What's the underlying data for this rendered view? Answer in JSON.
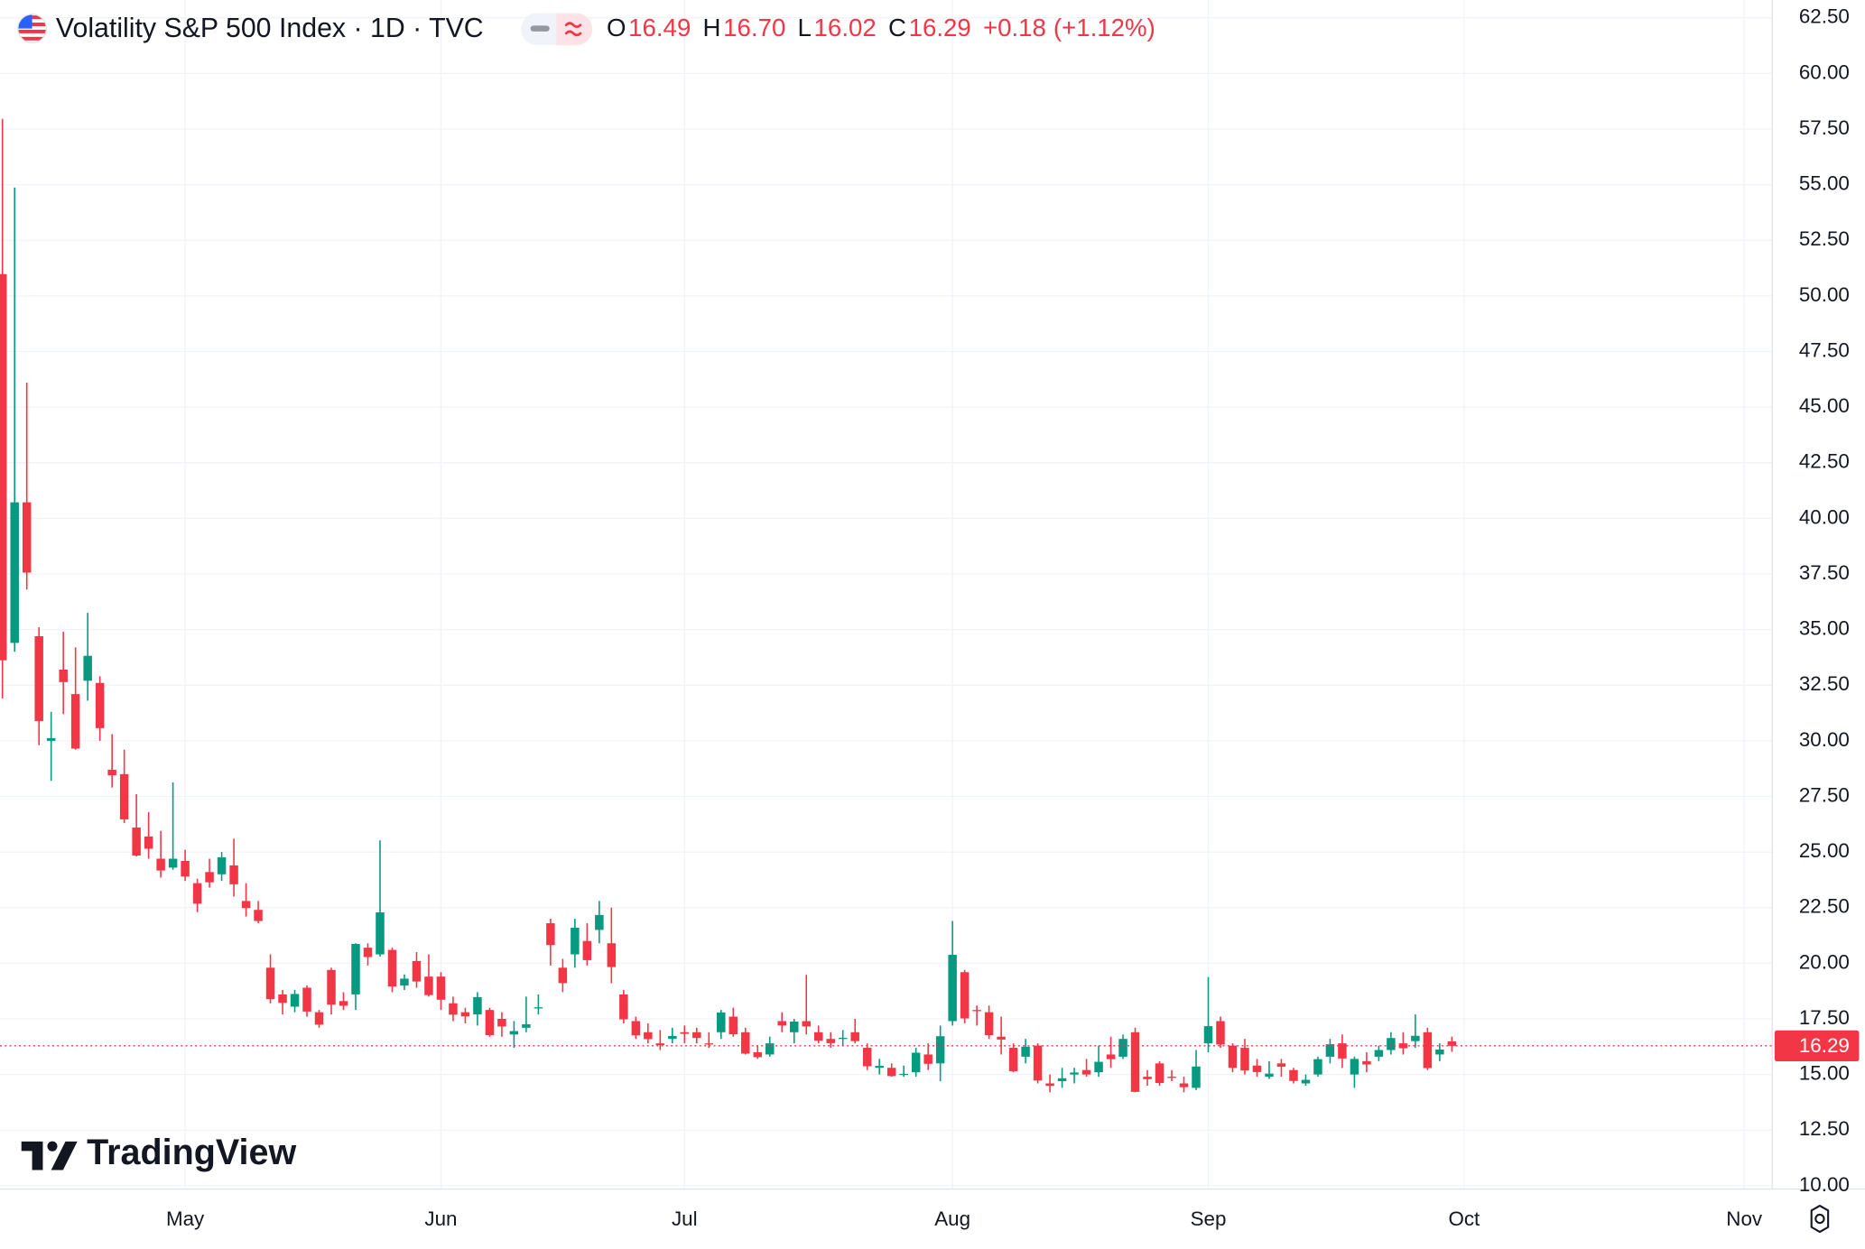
{
  "chart_data": {
    "type": "candlestick",
    "title": "Volatility S&P 500 Index · 1D · TVC",
    "legend": [
      {
        "label": "O",
        "value": "16.49"
      },
      {
        "label": "H",
        "value": "16.70"
      },
      {
        "label": "L",
        "value": "16.02"
      },
      {
        "label": "C",
        "value": "16.29"
      }
    ],
    "change": "+0.18",
    "change_percent": "(+1.12%)",
    "watermark": "TradingView",
    "up_color": "#089981",
    "down_color": "#f23645",
    "grid": true,
    "last_price": 16.29,
    "ylim": [
      9.85,
      63.3
    ],
    "yticks": [
      {
        "value": 10,
        "label": "10.00"
      },
      {
        "value": 12.5,
        "label": "12.50"
      },
      {
        "value": 15,
        "label": "15.00"
      },
      {
        "value": 17.5,
        "label": "17.50"
      },
      {
        "value": 20,
        "label": "20.00"
      },
      {
        "value": 22.5,
        "label": "22.50"
      },
      {
        "value": 25,
        "label": "25.00"
      },
      {
        "value": 27.5,
        "label": "27.50"
      },
      {
        "value": 30,
        "label": "30.00"
      },
      {
        "value": 32.5,
        "label": "32.50"
      },
      {
        "value": 35,
        "label": "35.00"
      },
      {
        "value": 37.5,
        "label": "37.50"
      },
      {
        "value": 40,
        "label": "40.00"
      },
      {
        "value": 42.5,
        "label": "42.50"
      },
      {
        "value": 45,
        "label": "45.00"
      },
      {
        "value": 47.5,
        "label": "47.50"
      },
      {
        "value": 50,
        "label": "50.00"
      },
      {
        "value": 52.5,
        "label": "52.50"
      },
      {
        "value": 55,
        "label": "55.00"
      },
      {
        "value": 57.5,
        "label": "57.50"
      },
      {
        "value": 60,
        "label": "60.00"
      },
      {
        "value": 62.5,
        "label": "62.50"
      }
    ],
    "xlim": [
      -0.2,
      145.3
    ],
    "xticks": [
      {
        "value": 15,
        "label": "May"
      },
      {
        "value": 36,
        "label": "Jun"
      },
      {
        "value": 56,
        "label": "Jul"
      },
      {
        "value": 78,
        "label": "Aug"
      },
      {
        "value": 99,
        "label": "Sep"
      },
      {
        "value": 120,
        "label": "Oct"
      },
      {
        "value": 143,
        "label": "Nov"
      }
    ],
    "open": [
      50.98,
      34.4,
      40.72,
      34.7,
      30.0,
      33.2,
      32.1,
      32.7,
      32.6,
      28.7,
      28.5,
      26.1,
      25.7,
      24.7,
      24.3,
      24.6,
      23.6,
      24.1,
      24.0,
      24.4,
      22.8,
      22.4,
      19.8,
      18.6,
      18.05,
      18.9,
      17.8,
      19.7,
      18.3,
      18.6,
      20.7,
      20.4,
      20.6,
      19.0,
      20.1,
      19.4,
      19.4,
      18.2,
      17.8,
      17.7,
      17.9,
      17.5,
      16.8,
      17.1,
      18.0,
      21.8,
      19.8,
      20.4,
      21.0,
      21.5,
      20.9,
      18.6,
      17.4,
      16.9,
      16.4,
      16.6,
      16.9,
      16.9,
      16.4,
      16.9,
      17.6,
      16.9,
      16.0,
      15.9,
      17.4,
      16.9,
      17.4,
      16.9,
      16.6,
      16.6,
      16.9,
      16.2,
      15.3,
      15.3,
      15.0,
      15.1,
      15.9,
      15.5,
      17.4,
      19.6,
      17.9,
      17.8,
      16.7,
      16.2,
      15.8,
      16.3,
      14.6,
      14.7,
      15.0,
      15.2,
      15.1,
      15.9,
      15.8,
      16.9,
      14.9,
      15.5,
      14.9,
      14.6,
      14.4,
      16.4,
      17.4,
      16.3,
      16.2,
      15.4,
      14.9,
      15.5,
      15.2,
      14.6,
      15.0,
      15.8,
      16.4,
      15.0,
      15.6,
      15.8,
      16.1,
      16.4,
      16.5,
      16.9,
      15.9,
      16.49
    ],
    "high": [
      57.96,
      54.87,
      46.1,
      35.1,
      31.3,
      34.9,
      34.2,
      35.75,
      32.9,
      30.3,
      29.6,
      27.6,
      26.8,
      25.95,
      28.13,
      25.1,
      23.8,
      24.7,
      25.0,
      25.6,
      23.6,
      22.8,
      20.4,
      18.8,
      18.8,
      19.0,
      17.9,
      19.8,
      18.7,
      20.9,
      20.9,
      25.53,
      20.7,
      19.5,
      20.5,
      20.4,
      19.6,
      18.5,
      18.0,
      18.7,
      18.0,
      17.8,
      17.4,
      18.5,
      18.6,
      22.0,
      20.2,
      22.0,
      21.8,
      22.8,
      22.5,
      18.8,
      17.6,
      17.3,
      17.0,
      17.1,
      17.2,
      17.1,
      16.9,
      17.9,
      18.0,
      17.1,
      16.3,
      16.7,
      17.8,
      17.5,
      19.48,
      17.2,
      16.9,
      17.0,
      17.5,
      16.4,
      15.7,
      15.5,
      15.4,
      16.2,
      16.4,
      17.2,
      21.9,
      19.7,
      18.1,
      18.1,
      17.6,
      16.4,
      16.6,
      16.4,
      15.0,
      15.3,
      15.3,
      15.7,
      16.3,
      16.7,
      16.8,
      17.1,
      15.2,
      15.6,
      15.2,
      14.9,
      16.1,
      19.38,
      17.6,
      16.4,
      16.6,
      15.7,
      15.6,
      15.7,
      15.3,
      15.0,
      15.8,
      16.6,
      16.8,
      15.8,
      16.0,
      16.3,
      16.9,
      16.9,
      17.7,
      17.1,
      16.4,
      16.7
    ],
    "low": [
      31.9,
      34.0,
      36.8,
      29.8,
      28.2,
      31.2,
      29.6,
      31.8,
      30.0,
      27.9,
      26.3,
      24.8,
      24.7,
      23.85,
      24.2,
      23.7,
      22.3,
      23.4,
      23.7,
      23.0,
      22.1,
      21.8,
      18.2,
      17.7,
      17.8,
      17.6,
      17.1,
      17.7,
      17.9,
      17.9,
      19.9,
      20.3,
      18.7,
      18.8,
      18.9,
      18.5,
      17.9,
      17.4,
      17.3,
      17.2,
      16.7,
      16.7,
      16.2,
      16.9,
      17.7,
      19.9,
      18.7,
      19.8,
      19.9,
      20.9,
      19.1,
      17.3,
      16.6,
      16.4,
      16.1,
      16.4,
      16.4,
      16.4,
      16.2,
      16.6,
      16.7,
      15.9,
      15.7,
      15.8,
      16.9,
      16.4,
      16.8,
      16.4,
      16.2,
      16.3,
      16.4,
      15.2,
      15.0,
      14.9,
      14.9,
      14.9,
      15.2,
      14.7,
      17.2,
      17.3,
      17.2,
      16.6,
      15.9,
      15.1,
      15.5,
      14.6,
      14.2,
      14.4,
      14.6,
      14.9,
      14.9,
      15.3,
      15.7,
      14.2,
      14.5,
      14.5,
      14.7,
      14.2,
      14.3,
      16.0,
      16.2,
      15.1,
      15.0,
      14.9,
      14.8,
      14.9,
      14.6,
      14.5,
      14.9,
      15.5,
      15.3,
      14.4,
      15.1,
      15.6,
      15.9,
      15.9,
      16.2,
      15.2,
      15.6,
      16.02
    ],
    "close": [
      33.62,
      40.72,
      37.56,
      30.89,
      30.12,
      32.64,
      29.65,
      33.82,
      30.57,
      28.45,
      26.47,
      24.84,
      25.15,
      24.17,
      24.7,
      23.9,
      22.68,
      23.64,
      24.76,
      23.55,
      22.48,
      21.9,
      18.39,
      18.22,
      18.62,
      17.83,
      17.24,
      18.14,
      18.09,
      20.87,
      20.28,
      22.29,
      18.96,
      19.31,
      19.18,
      18.57,
      18.36,
      17.69,
      17.61,
      18.48,
      16.77,
      17.16,
      16.95,
      17.26,
      18.02,
      20.82,
      19.11,
      21.6,
      20.14,
      22.17,
      19.83,
      17.48,
      16.76,
      16.59,
      16.32,
      16.73,
      16.83,
      16.64,
      16.38,
      17.79,
      16.81,
      15.94,
      15.78,
      16.4,
      17.2,
      17.38,
      17.16,
      16.52,
      16.41,
      16.65,
      16.5,
      15.37,
      15.39,
      14.93,
      15.03,
      15.98,
      15.48,
      16.72,
      20.38,
      17.52,
      17.85,
      16.77,
      16.57,
      15.15,
      16.25,
      14.73,
      14.49,
      14.83,
      15.09,
      15.0,
      15.57,
      15.69,
      16.6,
      14.22,
      14.79,
      14.62,
      14.85,
      14.43,
      15.36,
      17.17,
      16.35,
      15.3,
      15.18,
      15.11,
      15.04,
      15.35,
      14.71,
      14.76,
      15.69,
      16.36,
      15.72,
      15.7,
      15.45,
      16.1,
      16.64,
      16.18,
      16.74,
      15.29,
      16.12,
      16.29
    ]
  }
}
